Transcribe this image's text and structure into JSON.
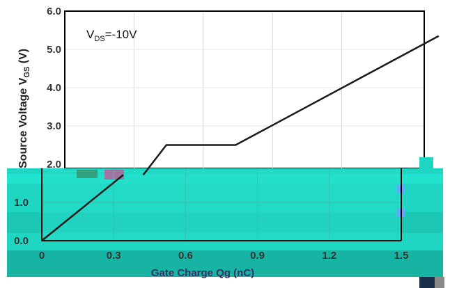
{
  "chart_data": {
    "type": "line",
    "title": "",
    "xlabel": "Gate Charge Qg (nC)",
    "ylabel": "Source  Voltage V",
    "ylabel_sub": "GS",
    "ylabel_unit": " (V)",
    "xlim": [
      0,
      1.7
    ],
    "ylim": [
      0,
      6.0
    ],
    "x_ticks": [
      "0",
      "0.3",
      "0.6",
      "0.9",
      "1.2",
      "1.5"
    ],
    "y_ticks": [
      "0.0",
      "1.0",
      "2.0",
      "3.0",
      "4.0",
      "5.0",
      "6.0"
    ],
    "grid": true,
    "annotation": {
      "main": "V",
      "sub": "DS",
      "rest": "=-10V"
    },
    "series": [
      {
        "x": [
          0,
          0.34,
          0.44,
          0.74,
          1.62
        ],
        "y": [
          0,
          1.72,
          2.5,
          2.5,
          5.35
        ]
      }
    ]
  }
}
